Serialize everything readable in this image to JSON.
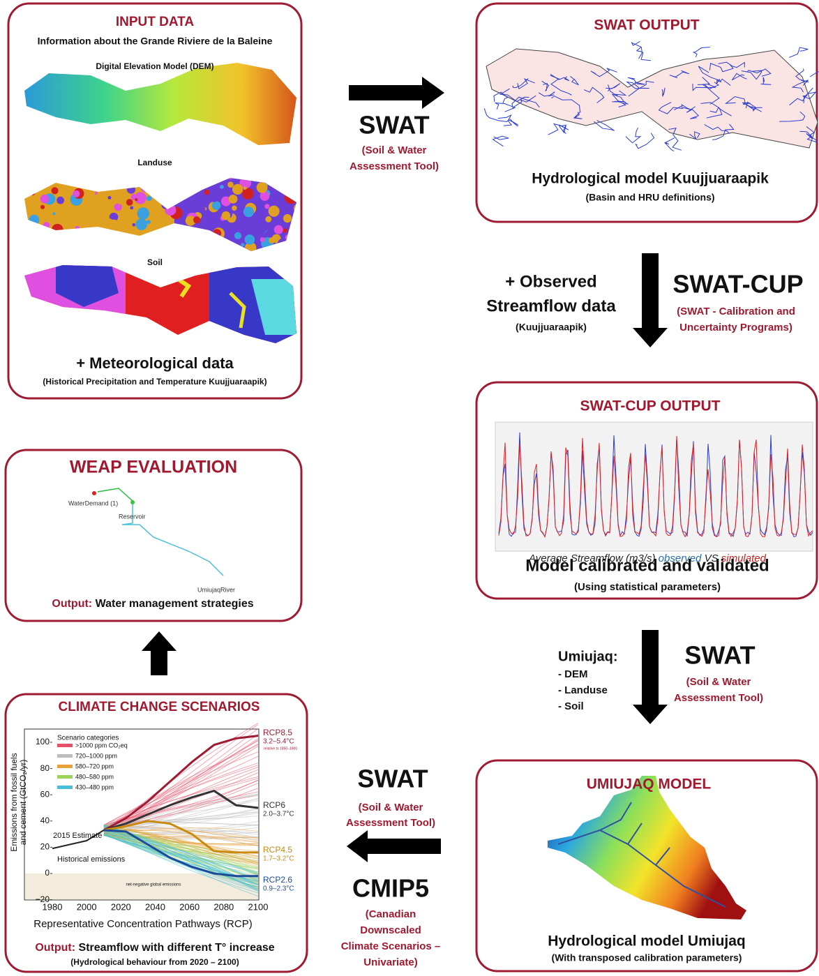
{
  "input_data": {
    "title": "INPUT DATA",
    "subtitle": "Information about the Grande Riviere de la Baleine",
    "map_labels": [
      "Digital Elevation Model (DEM)",
      "Landuse",
      "Soil"
    ],
    "addition": "+ Meteorological data",
    "addition_note": "(Historical Precipitation and Temperature Kuujjuaraapik)"
  },
  "swat_output": {
    "title": "SWAT OUTPUT",
    "caption": "Hydrological model Kuujjuaraapik",
    "note": "(Basin and HRU definitions)"
  },
  "swatcup_output": {
    "title": "SWAT-CUP OUTPUT",
    "chart_caption": {
      "text": "Average Streamflow (m3/s)",
      "observed": "observed",
      "vs": "VS",
      "simulated": "simulated"
    },
    "caption": "Model calibrated and validated",
    "note": "(Using statistical parameters)"
  },
  "umiujaq_model": {
    "title": "UMIUJAQ MODEL",
    "caption": "Hydrological model Umiujaq",
    "note": "(With transposed calibration parameters)"
  },
  "climate_scenarios": {
    "title": "CLIMATE CHANGE SCENARIOS",
    "y_label": [
      "Emissions from fossil fuels",
      "and cement (GtCO₂/yr)"
    ],
    "x_label": "Representative Concentration Pathways (RCP)",
    "y_ticks": [
      "100",
      "80",
      "60",
      "40",
      "20",
      "0",
      "−20"
    ],
    "x_ticks": [
      "1980",
      "2000",
      "2020",
      "2040",
      "2060",
      "2080",
      "2100"
    ],
    "legend_title": "Scenario categories",
    "legend": [
      ">1000 ppm CO₂eq",
      "720–1000 ppm",
      "580–720 ppm",
      "480–580 ppm",
      "430–480 ppm"
    ],
    "annotations": {
      "estimate": "2015 Estimate",
      "historical": "Historical emissions",
      "net_negative": "net-negative global emissions",
      "baseline": "relative to 1850–1900"
    },
    "pathways": [
      {
        "name": "RCP8.5",
        "range": "3.2–5.4°C"
      },
      {
        "name": "RCP6",
        "range": "2.0–3.7°C"
      },
      {
        "name": "RCP4.5",
        "range": "1.7–3.2°C"
      },
      {
        "name": "RCP2.6",
        "range": "0.9–2.3°C"
      }
    ],
    "output_label": "Output:",
    "output": "Streamflow with different T° increase",
    "note": "(Hydrological behaviour from 2020 – 2100)"
  },
  "weap_evaluation": {
    "title": "WEAP EVALUATION",
    "nodes": [
      "WaterDemand (1)",
      "Reservoir",
      "UmiujaqRiver"
    ],
    "output_label": "Output:",
    "output": "Water management strategies"
  },
  "steps": [
    {
      "tool": "SWAT",
      "tool_note": [
        "(Soil & Water",
        "Assessment Tool)"
      ]
    },
    {
      "input": [
        "+ Observed",
        "Streamflow data"
      ],
      "input_note": "(Kuujjuaraapik)",
      "tool": "SWAT-CUP",
      "tool_note": [
        "(SWAT - Calibration and",
        "Uncertainty Programs)"
      ]
    },
    {
      "input": "Umiujaq:",
      "input_items": [
        "- DEM",
        "- Landuse",
        "- Soil"
      ],
      "tool": "SWAT",
      "tool_note": [
        "(Soil & Water",
        "Assessment Tool)"
      ]
    },
    {
      "tool": "SWAT",
      "tool_note": [
        "(Soil & Water",
        "Assessment Tool)"
      ],
      "tool2": "CMIP5",
      "tool2_note": [
        "(Canadian",
        "Downscaled",
        "Climate Scenarios –",
        "Univariate)"
      ]
    }
  ]
}
